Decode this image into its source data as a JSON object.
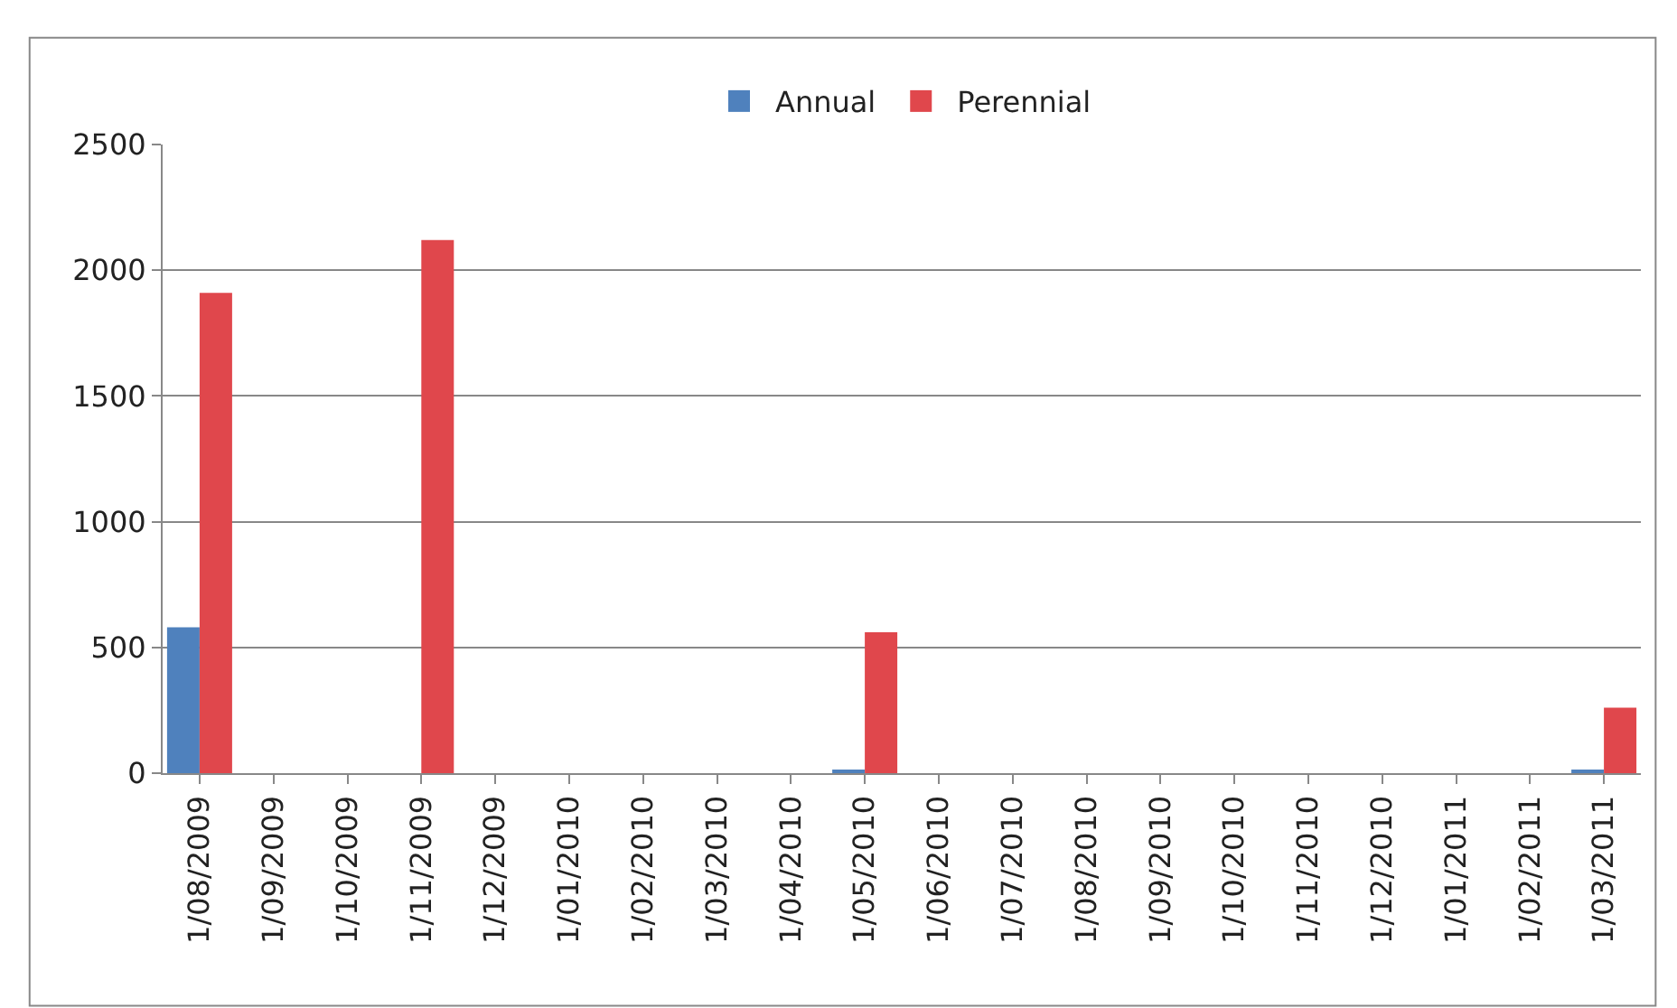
{
  "chart_data": {
    "type": "bar",
    "categories": [
      "1/08/2009",
      "1/09/2009",
      "1/10/2009",
      "1/11/2009",
      "1/12/2009",
      "1/01/2010",
      "1/02/2010",
      "1/03/2010",
      "1/04/2010",
      "1/05/2010",
      "1/06/2010",
      "1/07/2010",
      "1/08/2010",
      "1/09/2010",
      "1/10/2010",
      "1/11/2010",
      "1/12/2010",
      "1/01/2011",
      "1/02/2011",
      "1/03/2011"
    ],
    "series": [
      {
        "name": "Annual",
        "color": "#4f81bd",
        "values": [
          580,
          0,
          0,
          0,
          0,
          0,
          0,
          0,
          0,
          10,
          0,
          0,
          0,
          0,
          0,
          0,
          0,
          0,
          0,
          10
        ]
      },
      {
        "name": "Perennial",
        "color": "#e0474c",
        "values": [
          1910,
          0,
          0,
          2120,
          0,
          0,
          0,
          0,
          0,
          560,
          0,
          0,
          0,
          0,
          0,
          0,
          0,
          0,
          0,
          260
        ]
      }
    ],
    "ylim": [
      0,
      2500
    ],
    "yticks": [
      0,
      500,
      1000,
      1500,
      2000,
      2500
    ],
    "grid": "y",
    "legend": "top"
  }
}
